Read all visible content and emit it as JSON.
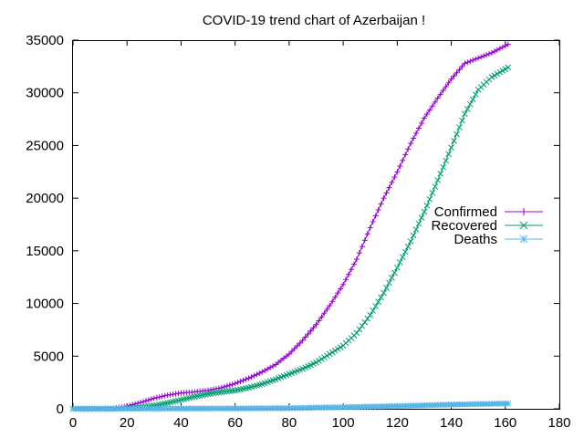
{
  "chart_data": {
    "type": "line",
    "title": "COVID-19 trend chart of Azerbaijan !",
    "xlabel": "",
    "ylabel": "",
    "xlim": [
      0,
      180
    ],
    "ylim": [
      0,
      35000
    ],
    "x_ticks": [
      0,
      20,
      40,
      60,
      80,
      100,
      120,
      140,
      160,
      180
    ],
    "y_ticks": [
      0,
      5000,
      10000,
      15000,
      20000,
      25000,
      30000,
      35000
    ],
    "grid": false,
    "legend_position": "right",
    "series": [
      {
        "name": "Confirmed",
        "color": "#9400d3",
        "marker": "plus",
        "points": [
          [
            0,
            0
          ],
          [
            10,
            10
          ],
          [
            15,
            50
          ],
          [
            18,
            150
          ],
          [
            20,
            250
          ],
          [
            25,
            600
          ],
          [
            30,
            1000
          ],
          [
            35,
            1300
          ],
          [
            40,
            1500
          ],
          [
            45,
            1600
          ],
          [
            50,
            1750
          ],
          [
            55,
            2000
          ],
          [
            60,
            2400
          ],
          [
            65,
            2900
          ],
          [
            70,
            3500
          ],
          [
            75,
            4200
          ],
          [
            80,
            5200
          ],
          [
            85,
            6500
          ],
          [
            90,
            8000
          ],
          [
            95,
            9800
          ],
          [
            100,
            11800
          ],
          [
            105,
            14200
          ],
          [
            110,
            17200
          ],
          [
            115,
            20000
          ],
          [
            120,
            22500
          ],
          [
            125,
            25200
          ],
          [
            130,
            27600
          ],
          [
            135,
            29500
          ],
          [
            140,
            31300
          ],
          [
            145,
            32800
          ],
          [
            150,
            33300
          ],
          [
            155,
            33800
          ],
          [
            161,
            34600
          ]
        ]
      },
      {
        "name": "Recovered",
        "color": "#009e73",
        "marker": "cross",
        "points": [
          [
            0,
            0
          ],
          [
            15,
            0
          ],
          [
            20,
            30
          ],
          [
            25,
            150
          ],
          [
            30,
            300
          ],
          [
            35,
            550
          ],
          [
            40,
            850
          ],
          [
            45,
            1150
          ],
          [
            50,
            1400
          ],
          [
            55,
            1600
          ],
          [
            60,
            1750
          ],
          [
            65,
            2000
          ],
          [
            70,
            2350
          ],
          [
            75,
            2800
          ],
          [
            80,
            3300
          ],
          [
            85,
            3800
          ],
          [
            90,
            4400
          ],
          [
            95,
            5200
          ],
          [
            100,
            6000
          ],
          [
            105,
            7200
          ],
          [
            110,
            8900
          ],
          [
            115,
            11000
          ],
          [
            120,
            13400
          ],
          [
            125,
            15900
          ],
          [
            130,
            18700
          ],
          [
            135,
            21700
          ],
          [
            140,
            24800
          ],
          [
            145,
            28000
          ],
          [
            150,
            30300
          ],
          [
            155,
            31500
          ],
          [
            161,
            32400
          ]
        ]
      },
      {
        "name": "Deaths",
        "color": "#56b4e9",
        "marker": "star",
        "points": [
          [
            0,
            0
          ],
          [
            20,
            5
          ],
          [
            40,
            20
          ],
          [
            60,
            30
          ],
          [
            80,
            60
          ],
          [
            100,
            150
          ],
          [
            120,
            250
          ],
          [
            140,
            400
          ],
          [
            161,
            500
          ]
        ]
      }
    ]
  }
}
